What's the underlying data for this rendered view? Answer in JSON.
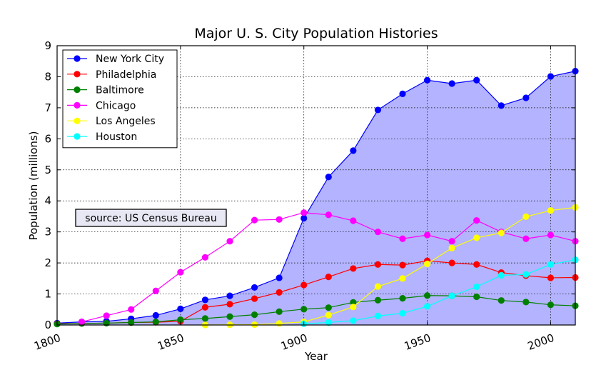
{
  "chart_data": {
    "type": "line",
    "title": "Major U. S. City Population Histories",
    "xlabel": "Year",
    "ylabel": "Population (millions)",
    "xlim": [
      1800,
      2010
    ],
    "ylim": [
      0,
      9
    ],
    "xticks": [
      1800,
      1850,
      1900,
      1950,
      2000
    ],
    "yticks": [
      0,
      1,
      2,
      3,
      4,
      5,
      6,
      7,
      8,
      9
    ],
    "grid": true,
    "legend_position": "top-left",
    "annotation": "source: US Census Bureau",
    "fill_series": "New York City",
    "fill_color": "#b3b3ff",
    "x": [
      1800,
      1810,
      1820,
      1830,
      1840,
      1850,
      1860,
      1870,
      1880,
      1890,
      1900,
      1910,
      1920,
      1930,
      1940,
      1950,
      1960,
      1970,
      1980,
      1990,
      2000,
      2010
    ],
    "series": [
      {
        "name": "New York City",
        "color": "#0000ff",
        "values": [
          0.06,
          0.1,
          0.12,
          0.2,
          0.31,
          0.52,
          0.81,
          0.94,
          1.21,
          1.52,
          3.44,
          4.77,
          5.62,
          6.93,
          7.45,
          7.89,
          7.78,
          7.89,
          7.07,
          7.32,
          8.01,
          8.18
        ]
      },
      {
        "name": "Philadelphia",
        "color": "#ff0000",
        "values": [
          0.04,
          0.05,
          0.06,
          0.08,
          0.09,
          0.12,
          0.57,
          0.67,
          0.85,
          1.05,
          1.29,
          1.55,
          1.82,
          1.95,
          1.93,
          2.07,
          2.0,
          1.95,
          1.69,
          1.59,
          1.52,
          1.53
        ]
      },
      {
        "name": "Baltimore",
        "color": "#008000",
        "values": [
          0.03,
          0.05,
          0.06,
          0.08,
          0.1,
          0.17,
          0.21,
          0.27,
          0.33,
          0.43,
          0.51,
          0.56,
          0.73,
          0.8,
          0.86,
          0.95,
          0.94,
          0.91,
          0.79,
          0.74,
          0.65,
          0.62
        ]
      },
      {
        "name": "Chicago",
        "color": "#ff00ff",
        "values": [
          null,
          0.1,
          0.3,
          0.5,
          1.1,
          1.7,
          2.18,
          2.7,
          3.38,
          3.4,
          3.62,
          3.55,
          3.36,
          3.0,
          2.78,
          2.9,
          2.7,
          3.37,
          3.0,
          2.78,
          2.9,
          2.7
        ]
      },
      {
        "name": "Los Angeles",
        "color": "#ffff00",
        "values": [
          null,
          null,
          null,
          null,
          null,
          null,
          0.0,
          0.01,
          0.01,
          0.05,
          0.1,
          0.32,
          0.58,
          1.24,
          1.5,
          1.97,
          2.48,
          2.81,
          2.97,
          3.49,
          3.69,
          3.79
        ]
      },
      {
        "name": "Houston",
        "color": "#00ffff",
        "values": [
          null,
          null,
          null,
          null,
          null,
          null,
          null,
          null,
          null,
          null,
          0.04,
          0.08,
          0.14,
          0.29,
          0.38,
          0.6,
          0.94,
          1.23,
          1.6,
          1.63,
          1.95,
          2.1
        ]
      }
    ]
  }
}
